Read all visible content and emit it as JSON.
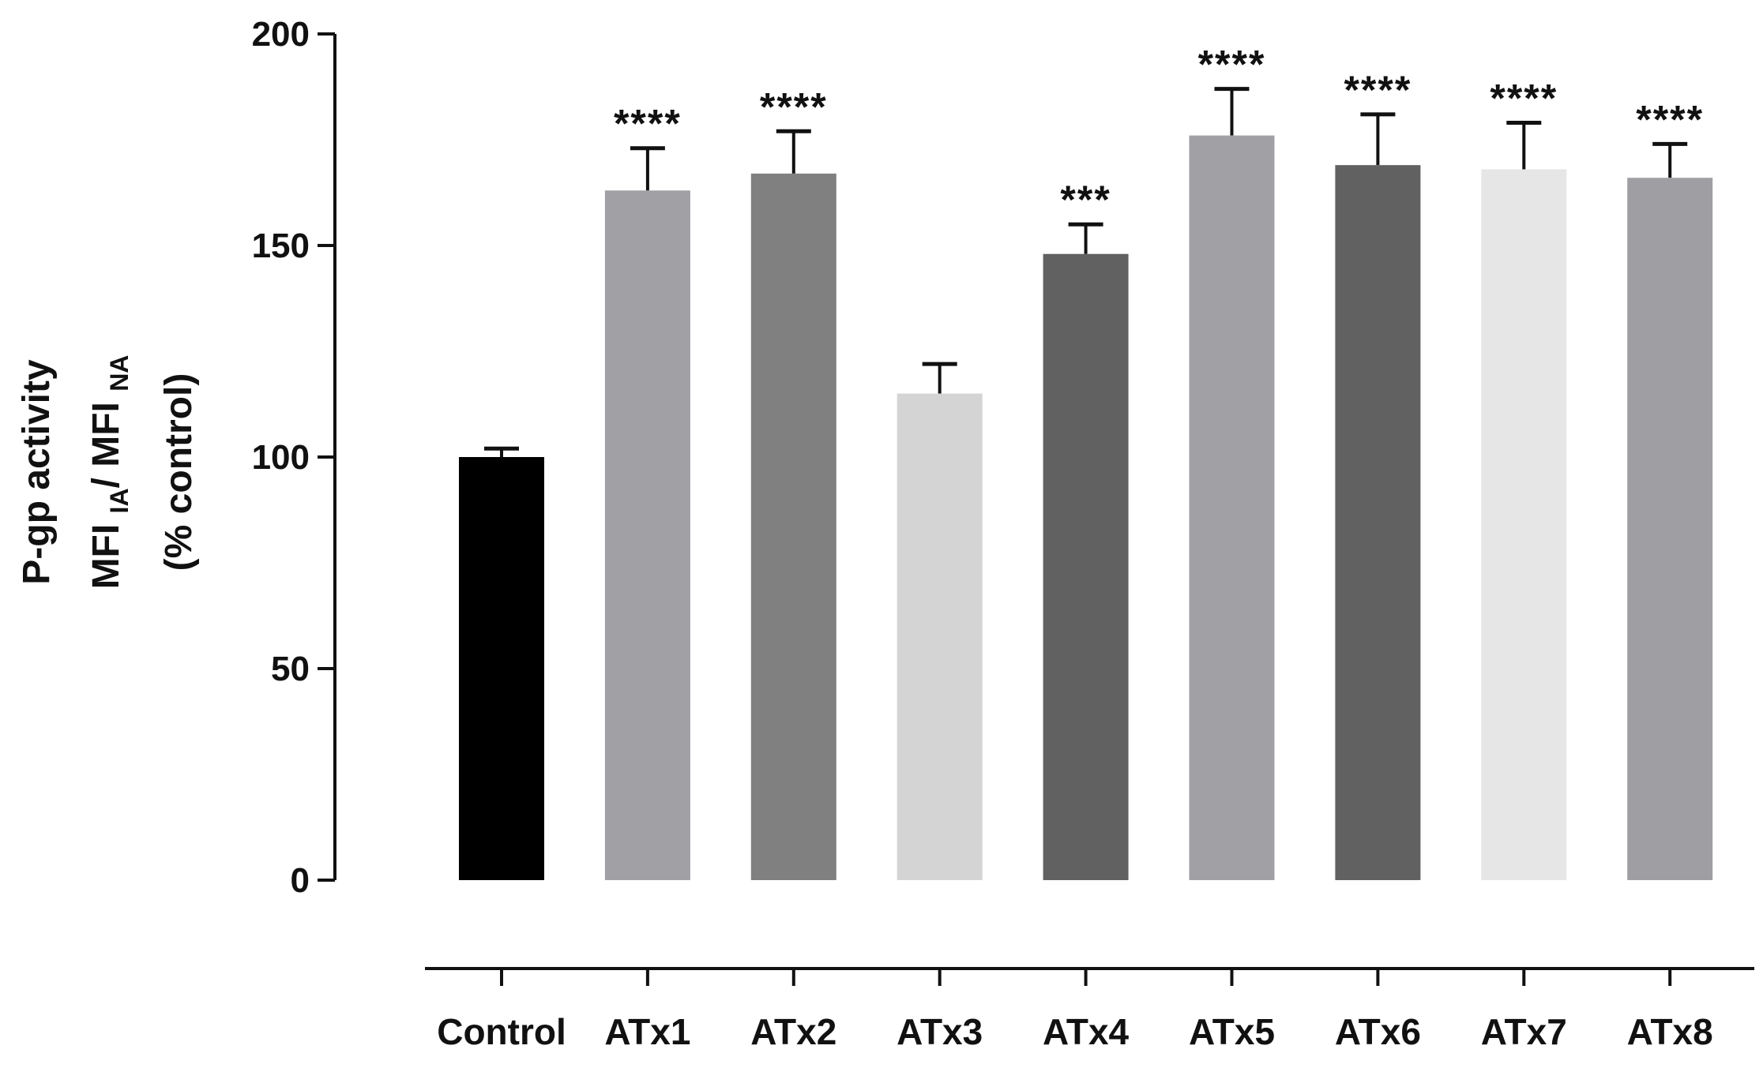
{
  "chart_data": {
    "type": "bar",
    "title": "",
    "ylabel_lines": [
      {
        "parts": [
          {
            "text": "P-gp activity",
            "sub": false
          }
        ]
      },
      {
        "parts": [
          {
            "text": "MFI ",
            "sub": false
          },
          {
            "text": "IA",
            "sub": true
          },
          {
            "text": "/ MFI ",
            "sub": false
          },
          {
            "text": "NA",
            "sub": true
          }
        ]
      },
      {
        "parts": [
          {
            "text": "(% control)",
            "sub": false
          }
        ]
      }
    ],
    "xlabel": "",
    "ylim": [
      0,
      200
    ],
    "yticks": [
      0,
      50,
      100,
      150,
      200
    ],
    "grid": false,
    "categories": [
      "Control",
      "ATx1",
      "ATx2",
      "ATx3",
      "ATx4",
      "ATx5",
      "ATx6",
      "ATx7",
      "ATx8"
    ],
    "values": [
      100,
      163,
      167,
      115,
      148,
      176,
      169,
      168,
      166
    ],
    "error_upper": [
      102,
      173,
      177,
      122,
      155,
      187,
      181,
      179,
      174
    ],
    "significance": [
      "",
      "****",
      "****",
      "",
      "***",
      "****",
      "****",
      "****",
      "****"
    ],
    "colors": [
      "#000000",
      "#a0a0a5",
      "#808080",
      "#d4d4d4",
      "#616161",
      "#a0a0a5",
      "#616161",
      "#e6e6e6",
      "#9f9ea3"
    ]
  }
}
